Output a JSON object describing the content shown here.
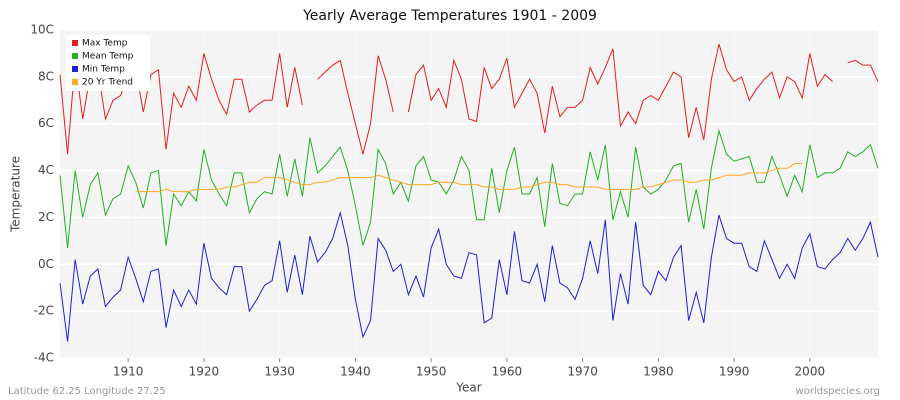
{
  "chart_data": {
    "type": "line",
    "title": "Yearly Average Temperatures 1901 - 2009",
    "x_label": "Year",
    "y_label": "Temperature",
    "footer_left": "Latitude 62.25 Longitude 27.25",
    "footer_right": "worldspecies.org",
    "grid": true,
    "legend": "top-left",
    "xlim": [
      1901,
      2009
    ],
    "xticks": [
      1910,
      1920,
      1930,
      1940,
      1950,
      1960,
      1970,
      1980,
      1990,
      2000
    ],
    "ylim": [
      -4,
      10
    ],
    "yticks": [
      {
        "value": -4,
        "label": "-4C"
      },
      {
        "value": -2,
        "label": "-2C"
      },
      {
        "value": 0,
        "label": "0C"
      },
      {
        "value": 2,
        "label": "2C"
      },
      {
        "value": 4,
        "label": "4C"
      },
      {
        "value": 6,
        "label": "6C"
      },
      {
        "value": 8,
        "label": "8C"
      },
      {
        "value": 10,
        "label": "10C"
      }
    ],
    "x": [
      1901,
      1902,
      1903,
      1904,
      1905,
      1906,
      1907,
      1908,
      1909,
      1910,
      1911,
      1912,
      1913,
      1914,
      1915,
      1916,
      1917,
      1918,
      1919,
      1920,
      1921,
      1922,
      1923,
      1924,
      1925,
      1926,
      1927,
      1928,
      1929,
      1930,
      1931,
      1932,
      1933,
      1934,
      1935,
      1936,
      1937,
      1938,
      1939,
      1940,
      1941,
      1942,
      1943,
      1944,
      1945,
      1946,
      1947,
      1948,
      1949,
      1950,
      1951,
      1952,
      1953,
      1954,
      1955,
      1956,
      1957,
      1958,
      1959,
      1960,
      1961,
      1962,
      1963,
      1964,
      1965,
      1966,
      1967,
      1968,
      1969,
      1970,
      1971,
      1972,
      1973,
      1974,
      1975,
      1976,
      1977,
      1978,
      1979,
      1980,
      1981,
      1982,
      1983,
      1984,
      1985,
      1986,
      1987,
      1988,
      1989,
      1990,
      1991,
      1992,
      1993,
      1994,
      1995,
      1996,
      1997,
      1998,
      1999,
      2000,
      2001,
      2002,
      2003,
      2004,
      2005,
      2006,
      2007,
      2008,
      2009
    ],
    "series": [
      {
        "name": "Max Temp",
        "color": "#e02020",
        "values": [
          8.1,
          4.7,
          8.7,
          6.2,
          8.1,
          8.3,
          6.2,
          7.0,
          7.2,
          8.1,
          8.3,
          6.5,
          8.1,
          8.3,
          4.9,
          7.3,
          6.7,
          7.6,
          7.0,
          9.0,
          7.9,
          7.0,
          6.4,
          7.9,
          7.9,
          6.5,
          6.8,
          7.0,
          7.0,
          9.0,
          6.7,
          8.4,
          6.8,
          null,
          7.9,
          8.2,
          8.5,
          8.7,
          7.3,
          6.0,
          4.7,
          6.0,
          8.9,
          7.9,
          6.5,
          null,
          6.5,
          8.1,
          8.5,
          7.0,
          7.5,
          6.7,
          8.7,
          7.9,
          6.2,
          6.1,
          8.4,
          7.5,
          7.9,
          8.8,
          6.7,
          7.3,
          7.9,
          7.3,
          5.6,
          7.6,
          6.3,
          6.7,
          6.7,
          7.0,
          8.4,
          7.7,
          8.4,
          9.2,
          5.9,
          6.5,
          6.0,
          7.0,
          7.2,
          7.0,
          7.6,
          8.2,
          8.0,
          5.4,
          6.7,
          5.3,
          7.9,
          9.4,
          8.3,
          7.8,
          8.0,
          7.0,
          7.5,
          7.9,
          8.2,
          7.1,
          8.0,
          7.8,
          7.1,
          9.0,
          7.6,
          8.1,
          7.8,
          null,
          8.6,
          8.7,
          8.5,
          8.5,
          7.8
        ]
      },
      {
        "name": "Mean Temp",
        "color": "#20b020",
        "values": [
          3.8,
          0.7,
          4.0,
          2.0,
          3.4,
          3.9,
          2.1,
          2.8,
          3.0,
          4.2,
          3.5,
          2.4,
          3.9,
          4.0,
          0.8,
          3.0,
          2.5,
          3.1,
          2.7,
          4.9,
          3.6,
          3.0,
          2.5,
          3.9,
          3.9,
          2.2,
          2.8,
          3.1,
          3.0,
          4.7,
          2.9,
          4.5,
          2.9,
          5.4,
          3.9,
          4.2,
          4.6,
          5.0,
          4.0,
          2.5,
          0.8,
          1.8,
          4.9,
          4.3,
          3.0,
          3.5,
          2.7,
          4.2,
          4.6,
          3.6,
          3.5,
          3.0,
          3.6,
          4.6,
          4.0,
          1.9,
          1.9,
          4.1,
          2.2,
          4.0,
          5.0,
          3.0,
          3.0,
          3.7,
          1.6,
          4.3,
          2.6,
          2.5,
          3.0,
          3.0,
          4.8,
          3.6,
          5.1,
          1.9,
          3.1,
          2.0,
          5.0,
          3.3,
          3.0,
          3.2,
          3.6,
          4.2,
          4.3,
          1.8,
          3.2,
          1.5,
          4.1,
          5.7,
          4.7,
          4.4,
          4.5,
          4.6,
          3.5,
          3.5,
          4.6,
          3.8,
          2.9,
          3.8,
          3.1,
          5.1,
          3.7,
          3.9,
          3.9,
          4.1,
          4.8,
          4.6,
          4.8,
          5.1,
          4.1
        ]
      },
      {
        "name": "Min Temp",
        "color": "#2020d0",
        "values": [
          -0.8,
          -3.3,
          0.2,
          -1.7,
          -0.5,
          -0.2,
          -1.8,
          -1.4,
          -1.1,
          0.3,
          -0.6,
          -1.6,
          -0.3,
          -0.2,
          -2.7,
          -1.1,
          -1.8,
          -1.1,
          -1.7,
          0.9,
          -0.6,
          -1.0,
          -1.3,
          -0.1,
          -0.1,
          -2.0,
          -1.5,
          -0.9,
          -0.7,
          1.0,
          -1.2,
          0.4,
          -1.3,
          1.2,
          0.1,
          0.5,
          1.1,
          2.2,
          0.8,
          -1.5,
          -3.1,
          -2.4,
          1.1,
          0.6,
          -0.3,
          0.0,
          -1.3,
          -0.5,
          -1.4,
          0.7,
          1.5,
          0.0,
          -0.5,
          -0.6,
          0.5,
          0.4,
          -2.5,
          -2.3,
          0.2,
          -1.3,
          1.4,
          -0.7,
          -0.8,
          0.0,
          -1.6,
          0.8,
          -0.8,
          -1.0,
          -1.5,
          -0.6,
          1.0,
          -0.4,
          1.9,
          -2.4,
          -0.4,
          -1.7,
          1.8,
          -0.9,
          -1.3,
          -0.3,
          -0.7,
          0.3,
          0.8,
          -2.4,
          -1.2,
          -2.5,
          0.3,
          2.1,
          1.1,
          0.9,
          0.9,
          -0.1,
          -0.3,
          1.0,
          0.2,
          -0.6,
          0.0,
          -0.6,
          0.7,
          1.3,
          -0.1,
          -0.2,
          0.2,
          0.5,
          1.1,
          0.6,
          1.1,
          1.8,
          0.3
        ]
      },
      {
        "name": "20 Yr Trend",
        "color": "#ffa820",
        "values": [
          null,
          null,
          null,
          null,
          null,
          null,
          null,
          null,
          null,
          null,
          3.1,
          3.1,
          3.1,
          3.1,
          3.2,
          3.1,
          3.1,
          3.1,
          3.2,
          3.2,
          3.2,
          3.2,
          3.3,
          3.3,
          3.4,
          3.5,
          3.5,
          3.7,
          3.7,
          3.7,
          3.6,
          3.5,
          3.4,
          3.4,
          3.5,
          3.5,
          3.6,
          3.7,
          3.7,
          3.7,
          3.7,
          3.7,
          3.8,
          3.7,
          3.6,
          3.5,
          3.4,
          3.4,
          3.4,
          3.4,
          3.5,
          3.5,
          3.5,
          3.4,
          3.4,
          3.4,
          3.3,
          3.3,
          3.2,
          3.2,
          3.2,
          3.3,
          3.3,
          3.4,
          3.5,
          3.5,
          3.4,
          3.4,
          3.3,
          3.3,
          3.3,
          3.3,
          3.2,
          3.2,
          3.2,
          3.2,
          3.2,
          3.3,
          3.3,
          3.4,
          3.5,
          3.6,
          3.6,
          3.5,
          3.5,
          3.6,
          3.6,
          3.7,
          3.8,
          3.8,
          3.8,
          3.9,
          3.9,
          3.9,
          4.0,
          4.1,
          4.1,
          4.3,
          4.3,
          null,
          null,
          null,
          null,
          null,
          null,
          null,
          null,
          null,
          null
        ]
      }
    ]
  }
}
